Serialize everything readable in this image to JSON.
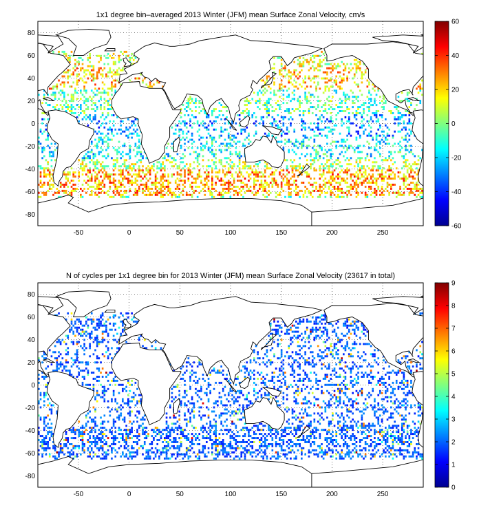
{
  "chart_data": [
    {
      "type": "heatmap",
      "title": "1x1 degree bin–averaged 2013 Winter (JFM) mean Surface Zonal Velocity, cm/s",
      "xlim": [
        -90,
        290
      ],
      "ylim": [
        -90,
        90
      ],
      "xticks": [
        -50,
        0,
        50,
        100,
        150,
        200,
        250
      ],
      "yticks": [
        80,
        60,
        40,
        20,
        0,
        -20,
        -40,
        -60,
        -80
      ],
      "grid": true,
      "colorbar": {
        "colormap": "jet",
        "range": [
          -60,
          60
        ],
        "ticks": [
          60,
          40,
          20,
          0,
          -20,
          -40,
          -60
        ]
      },
      "dominant_value_by_latitude": [
        {
          "lat_band": [
            50,
            70
          ],
          "value": 10
        },
        {
          "lat_band": [
            30,
            50
          ],
          "value": 20
        },
        {
          "lat_band": [
            10,
            30
          ],
          "value": -5
        },
        {
          "lat_band": [
            -10,
            10
          ],
          "value": -25
        },
        {
          "lat_band": [
            -30,
            -10
          ],
          "value": -15
        },
        {
          "lat_band": [
            -40,
            -30
          ],
          "value": 5
        },
        {
          "lat_band": [
            -62,
            -40
          ],
          "value": 25
        }
      ]
    },
    {
      "type": "heatmap",
      "title": "N of cycles per 1x1 degree bin for 2013 Winter (JFM) mean Surface Zonal Velocity (23617 in total)",
      "xlim": [
        -90,
        290
      ],
      "ylim": [
        -90,
        90
      ],
      "xticks": [
        -50,
        0,
        50,
        100,
        150,
        200,
        250
      ],
      "yticks": [
        80,
        60,
        40,
        20,
        0,
        -20,
        -40,
        -60,
        -80
      ],
      "grid": true,
      "total_cycles": 23617,
      "colorbar": {
        "colormap": "jet",
        "range": [
          0,
          9
        ],
        "ticks": [
          9,
          8,
          7,
          6,
          5,
          4,
          3,
          2,
          1,
          0
        ]
      },
      "dominant_value": 2
    }
  ]
}
